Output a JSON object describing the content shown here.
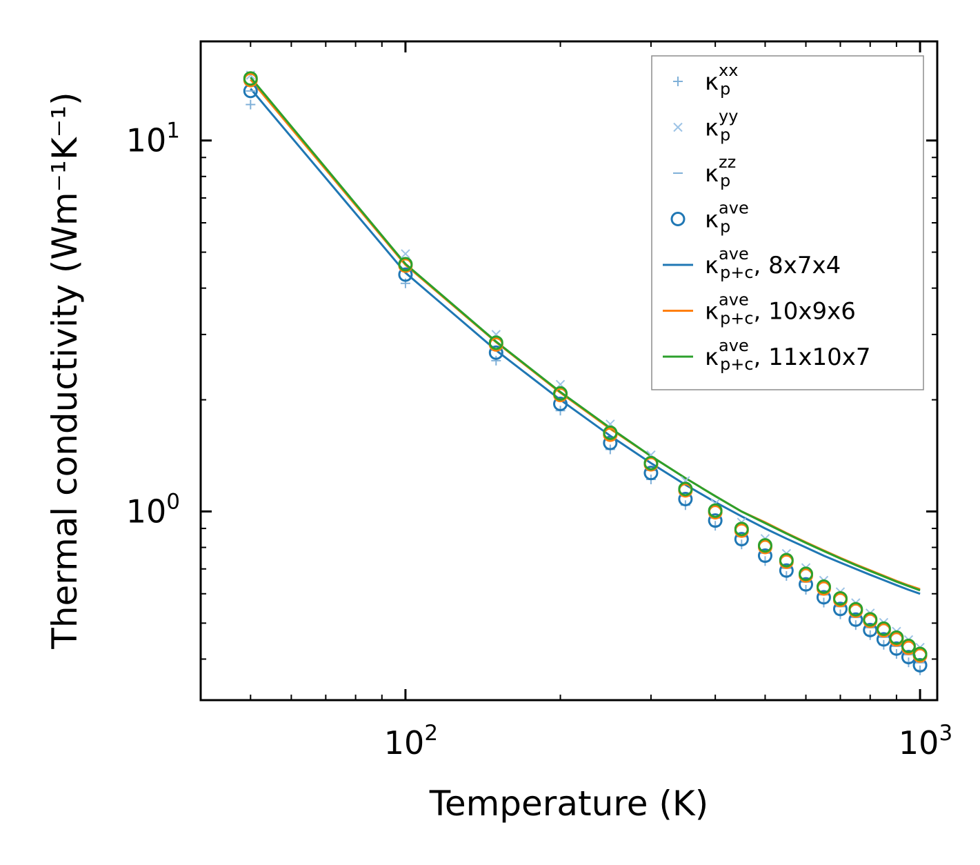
{
  "chart_data": {
    "type": "line",
    "scale": "log-log",
    "title": "",
    "xlabel": "Temperature (K)",
    "ylabel": "Thermal conductivity (Wm⁻¹K⁻¹)",
    "xlim": [
      40,
      1080
    ],
    "ylim": [
      0.31,
      18.5
    ],
    "x_ticks": [
      {
        "value": 100,
        "base": "10",
        "exp": "2"
      },
      {
        "value": 1000,
        "base": "10",
        "exp": "3"
      }
    ],
    "y_ticks": [
      {
        "value": 1,
        "base": "10",
        "exp": "0"
      },
      {
        "value": 10,
        "base": "10",
        "exp": "1"
      }
    ],
    "legend_position": "top-right",
    "x": [
      50,
      100,
      150,
      200,
      250,
      300,
      350,
      400,
      450,
      500,
      550,
      600,
      650,
      700,
      750,
      800,
      850,
      900,
      950,
      1000
    ],
    "series": [
      {
        "name": "κ_p^xx",
        "sym": "κ",
        "sub": "p",
        "sup": "xx",
        "suffix": "",
        "kind": "marker",
        "marker": "plus",
        "color": "#7fb0d8",
        "values": [
          12.5,
          4.12,
          2.55,
          1.87,
          1.47,
          1.22,
          1.04,
          0.915,
          0.815,
          0.735,
          0.67,
          0.615,
          0.568,
          0.528,
          0.494,
          0.464,
          0.437,
          0.413,
          0.392,
          0.373
        ]
      },
      {
        "name": "κ_p^yy",
        "sym": "κ",
        "sub": "p",
        "sup": "yy",
        "suffix": "",
        "kind": "marker",
        "marker": "x",
        "color": "#9dc3e6",
        "values": [
          15.0,
          4.95,
          3.0,
          2.2,
          1.72,
          1.42,
          1.21,
          1.05,
          0.935,
          0.845,
          0.77,
          0.705,
          0.652,
          0.607,
          0.567,
          0.532,
          0.502,
          0.475,
          0.451,
          0.43
        ]
      },
      {
        "name": "κ_p^zz",
        "sym": "κ",
        "sub": "p",
        "sup": "zz",
        "suffix": "",
        "kind": "marker",
        "marker": "dash",
        "color": "#7fb0d8",
        "values": [
          13.6,
          4.45,
          2.72,
          1.99,
          1.56,
          1.29,
          1.1,
          0.96,
          0.855,
          0.772,
          0.703,
          0.645,
          0.596,
          0.554,
          0.518,
          0.486,
          0.458,
          0.433,
          0.411,
          0.391
        ]
      },
      {
        "name": "κ_p^ave",
        "sym": "κ",
        "sub": "p",
        "sup": "ave",
        "suffix": "",
        "kind": "marker",
        "marker": "circle",
        "color": "#1f77b4",
        "values": [
          13.6,
          4.35,
          2.68,
          1.95,
          1.53,
          1.27,
          1.08,
          0.945,
          0.842,
          0.76,
          0.693,
          0.636,
          0.587,
          0.546,
          0.511,
          0.479,
          0.452,
          0.427,
          0.405,
          0.385
        ]
      },
      {
        "name": "κ_p+c^ave, 8x7x4",
        "sym": "κ",
        "sub": "p+c",
        "sup": "ave",
        "suffix": ", 8x7x4",
        "kind": "line",
        "color": "#1f77b4",
        "values": [
          13.8,
          4.4,
          2.72,
          2.0,
          1.6,
          1.35,
          1.18,
          1.06,
          0.97,
          0.9,
          0.845,
          0.8,
          0.76,
          0.728,
          0.7,
          0.675,
          0.653,
          0.633,
          0.615,
          0.6
        ]
      },
      {
        "name": "κ_p+c^ave, 10x9x6",
        "sym": "κ",
        "sub": "p+c",
        "sup": "ave",
        "suffix": ", 10x9x6",
        "kind": "line",
        "color": "#ff7f0e",
        "values": [
          14.6,
          4.62,
          2.86,
          2.09,
          1.67,
          1.41,
          1.23,
          1.1,
          1.0,
          0.935,
          0.875,
          0.826,
          0.785,
          0.75,
          0.72,
          0.694,
          0.671,
          0.65,
          0.632,
          0.617
        ]
      },
      {
        "name": "κ_p+c^ave, 11x10x7",
        "sym": "κ",
        "sub": "p+c",
        "sup": "ave",
        "suffix": ", 11x10x7",
        "kind": "line",
        "color": "#2ca02c",
        "values": [
          14.8,
          4.65,
          2.87,
          2.1,
          1.68,
          1.41,
          1.23,
          1.1,
          1.0,
          0.93,
          0.872,
          0.823,
          0.782,
          0.747,
          0.717,
          0.691,
          0.668,
          0.647,
          0.629,
          0.613
        ]
      }
    ],
    "marker_overlays": [
      {
        "name": "κ_p^ave, 10x9x6",
        "marker": "circle",
        "color": "#ff7f0e",
        "values": [
          14.55,
          4.6,
          2.82,
          2.06,
          1.61,
          1.34,
          1.14,
          0.995,
          0.888,
          0.802,
          0.732,
          0.672,
          0.62,
          0.577,
          0.54,
          0.507,
          0.478,
          0.452,
          0.429,
          0.409
        ]
      },
      {
        "name": "κ_p^ave, 11x10x7",
        "marker": "circle",
        "color": "#2ca02c",
        "values": [
          14.7,
          4.64,
          2.85,
          2.08,
          1.63,
          1.35,
          1.15,
          1.005,
          0.897,
          0.81,
          0.739,
          0.679,
          0.627,
          0.583,
          0.545,
          0.512,
          0.483,
          0.457,
          0.434,
          0.413
        ]
      }
    ]
  }
}
